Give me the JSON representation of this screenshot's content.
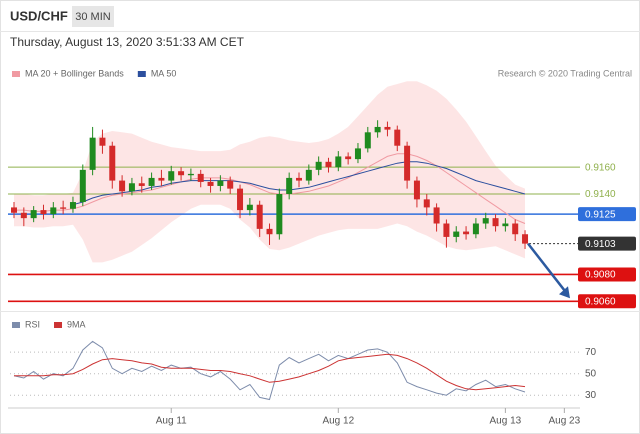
{
  "header": {
    "symbol": "USD/CHF",
    "interval": "30 MIN",
    "datetime": "Thursday, August 13, 2020 3:51:33 AM CET"
  },
  "chart_data": [
    {
      "type": "candlestick",
      "credit": "Research © 2020 Trading Central",
      "ylim": [
        0.9055,
        0.9225
      ],
      "xlim": [
        0,
        58
      ],
      "up_color": "#1f8a1f",
      "down_color": "#d42a2a",
      "open": [
        0.913,
        0.9126,
        0.9122,
        0.9128,
        0.9125,
        0.913,
        0.9129,
        0.9134,
        0.9158,
        0.9182,
        0.9176,
        0.915,
        0.9142,
        0.9148,
        0.9146,
        0.9152,
        0.915,
        0.9157,
        0.9154,
        0.9155,
        0.9149,
        0.9146,
        0.915,
        0.9144,
        0.9128,
        0.9132,
        0.9114,
        0.911,
        0.914,
        0.9152,
        0.915,
        0.9158,
        0.9164,
        0.916,
        0.9168,
        0.9166,
        0.9174,
        0.9186,
        0.919,
        0.9188,
        0.9176,
        0.915,
        0.9136,
        0.913,
        0.9118,
        0.9108,
        0.9112,
        0.911,
        0.9118,
        0.9122,
        0.9116,
        0.9118,
        0.911
      ],
      "high": [
        0.9134,
        0.913,
        0.9131,
        0.9132,
        0.9134,
        0.9135,
        0.9138,
        0.9162,
        0.919,
        0.9188,
        0.9179,
        0.9154,
        0.9152,
        0.9153,
        0.9156,
        0.9158,
        0.9161,
        0.916,
        0.9159,
        0.9158,
        0.9152,
        0.9154,
        0.9153,
        0.9147,
        0.9137,
        0.9135,
        0.9118,
        0.9144,
        0.9156,
        0.9156,
        0.9162,
        0.9168,
        0.9167,
        0.9172,
        0.9171,
        0.9178,
        0.919,
        0.9195,
        0.9194,
        0.9191,
        0.9179,
        0.9153,
        0.914,
        0.9133,
        0.9121,
        0.9116,
        0.9116,
        0.9122,
        0.9126,
        0.9125,
        0.9122,
        0.9121,
        0.9113
      ],
      "low": [
        0.9122,
        0.9116,
        0.9119,
        0.9121,
        0.9122,
        0.9125,
        0.9126,
        0.9131,
        0.9154,
        0.917,
        0.9144,
        0.9138,
        0.9139,
        0.9141,
        0.9143,
        0.9146,
        0.9147,
        0.915,
        0.915,
        0.9145,
        0.9141,
        0.9142,
        0.914,
        0.9122,
        0.9124,
        0.9108,
        0.9102,
        0.9106,
        0.9136,
        0.9145,
        0.9147,
        0.9154,
        0.9156,
        0.9157,
        0.9162,
        0.9163,
        0.9171,
        0.9182,
        0.9183,
        0.9172,
        0.9144,
        0.913,
        0.9124,
        0.9112,
        0.91,
        0.9104,
        0.9106,
        0.9107,
        0.9114,
        0.9112,
        0.9112,
        0.9105,
        0.9099
      ],
      "close": [
        0.9126,
        0.9122,
        0.9128,
        0.9125,
        0.913,
        0.9129,
        0.9134,
        0.9158,
        0.9182,
        0.9176,
        0.915,
        0.9142,
        0.9148,
        0.9146,
        0.9152,
        0.915,
        0.9157,
        0.9154,
        0.9155,
        0.9149,
        0.9146,
        0.915,
        0.9144,
        0.9128,
        0.9132,
        0.9114,
        0.911,
        0.914,
        0.9152,
        0.915,
        0.9158,
        0.9164,
        0.916,
        0.9168,
        0.9166,
        0.9174,
        0.9186,
        0.919,
        0.9188,
        0.9176,
        0.915,
        0.9136,
        0.913,
        0.9118,
        0.9108,
        0.9112,
        0.911,
        0.9118,
        0.9122,
        0.9116,
        0.9118,
        0.911,
        0.9103
      ],
      "series": [
        {
          "name": "MA 20 + Bollinger Bands",
          "color": "#f09aa2",
          "fill": "#fde0e0",
          "values": [
            0.9128,
            0.9128,
            0.9127,
            0.9127,
            0.9128,
            0.9128,
            0.9129,
            0.9131,
            0.9134,
            0.9137,
            0.9139,
            0.914,
            0.9141,
            0.9142,
            0.9143,
            0.9145,
            0.9147,
            0.9149,
            0.9151,
            0.9152,
            0.9152,
            0.9152,
            0.9151,
            0.9149,
            0.9147,
            0.9144,
            0.9141,
            0.914,
            0.914,
            0.9141,
            0.9142,
            0.9144,
            0.9146,
            0.9149,
            0.9152,
            0.9156,
            0.916,
            0.9164,
            0.9168,
            0.917,
            0.917,
            0.9168,
            0.9165,
            0.9161,
            0.9156,
            0.9151,
            0.9146,
            0.9141,
            0.9136,
            0.9131,
            0.9126,
            0.9121,
            0.9118
          ],
          "upper": [
            0.914,
            0.914,
            0.9139,
            0.9139,
            0.914,
            0.914,
            0.9141,
            0.9156,
            0.9179,
            0.9185,
            0.9187,
            0.9186,
            0.9185,
            0.9182,
            0.9179,
            0.9177,
            0.9175,
            0.9174,
            0.9173,
            0.9172,
            0.9172,
            0.9172,
            0.9173,
            0.9177,
            0.9179,
            0.9182,
            0.9183,
            0.9182,
            0.918,
            0.9179,
            0.9178,
            0.9179,
            0.9181,
            0.9185,
            0.919,
            0.9198,
            0.9206,
            0.9214,
            0.922,
            0.9222,
            0.9224,
            0.9224,
            0.9221,
            0.9217,
            0.9211,
            0.9203,
            0.9194,
            0.9183,
            0.9172,
            0.9161,
            0.9154,
            0.9147,
            0.9144
          ],
          "lower": [
            0.9116,
            0.9116,
            0.9115,
            0.9115,
            0.9116,
            0.9116,
            0.9117,
            0.9106,
            0.9089,
            0.9089,
            0.9091,
            0.9094,
            0.9097,
            0.9102,
            0.9107,
            0.9113,
            0.9119,
            0.9124,
            0.9129,
            0.9132,
            0.9132,
            0.9132,
            0.9129,
            0.9121,
            0.9115,
            0.9106,
            0.9099,
            0.9098,
            0.91,
            0.9103,
            0.9106,
            0.9109,
            0.9111,
            0.9113,
            0.9114,
            0.9114,
            0.9114,
            0.9114,
            0.9116,
            0.9118,
            0.9116,
            0.9112,
            0.9109,
            0.9105,
            0.9101,
            0.9099,
            0.9098,
            0.9099,
            0.91,
            0.9101,
            0.9098,
            0.9095,
            0.9092
          ]
        },
        {
          "name": "MA 50",
          "color": "#2c4f9e",
          "values": [
            null,
            null,
            null,
            null,
            null,
            null,
            0.9132,
            0.9134,
            0.9137,
            0.9139,
            0.914,
            0.9141,
            0.9142,
            0.9143,
            0.9145,
            0.9146,
            0.9148,
            0.9149,
            0.915,
            0.915,
            0.915,
            0.915,
            0.915,
            0.9149,
            0.9148,
            0.9146,
            0.9144,
            0.9143,
            0.9143,
            0.9144,
            0.9145,
            0.9147,
            0.9149,
            0.9151,
            0.9153,
            0.9155,
            0.9157,
            0.9159,
            0.9161,
            0.9163,
            0.9164,
            0.9164,
            0.9163,
            0.9161,
            0.9159,
            0.9156,
            0.9153,
            0.915,
            0.9148,
            0.9146,
            0.9144,
            0.9142,
            0.914
          ]
        }
      ],
      "levels": [
        {
          "value": 0.916,
          "label": "0.9160",
          "color": "#8fb04c",
          "style": "text"
        },
        {
          "value": 0.914,
          "label": "0.9140",
          "color": "#8fb04c",
          "style": "text"
        },
        {
          "value": 0.9125,
          "label": "0.9125",
          "color": "#2f6fdc",
          "style": "box"
        },
        {
          "value": 0.9103,
          "label": "0.9103",
          "color": "#333333",
          "style": "box",
          "dashed": true
        },
        {
          "value": 0.908,
          "label": "0.9080",
          "color": "#dd1111",
          "style": "box"
        },
        {
          "value": 0.906,
          "label": "0.9060",
          "color": "#dd1111",
          "style": "box"
        }
      ]
    },
    {
      "type": "line",
      "ylim": [
        20,
        85
      ],
      "yticks": [
        70,
        50,
        30
      ],
      "grid": true,
      "xlim": [
        0,
        58
      ],
      "xticks": [
        {
          "value": 16,
          "label": "Aug 11"
        },
        {
          "value": 33,
          "label": "Aug 12"
        },
        {
          "value": 50,
          "label": "Aug 13"
        },
        {
          "value": 56,
          "label": "Aug 23"
        }
      ],
      "series": [
        {
          "name": "RSI",
          "color": "#7d8cab",
          "values": [
            48,
            46,
            52,
            45,
            50,
            48,
            55,
            72,
            80,
            74,
            55,
            50,
            55,
            52,
            57,
            53,
            58,
            55,
            56,
            50,
            47,
            52,
            45,
            35,
            40,
            28,
            26,
            58,
            65,
            60,
            64,
            68,
            62,
            67,
            64,
            68,
            72,
            73,
            70,
            60,
            42,
            38,
            35,
            32,
            30,
            36,
            34,
            40,
            44,
            38,
            40,
            36,
            33
          ]
        },
        {
          "name": "9MA",
          "color": "#cc3333",
          "values": [
            48,
            48,
            48,
            48,
            49,
            49,
            50,
            54,
            59,
            63,
            64,
            63,
            62,
            60,
            59,
            56,
            55,
            55,
            55,
            54,
            53,
            53,
            52,
            50,
            48,
            45,
            42,
            43,
            45,
            47,
            50,
            53,
            57,
            62,
            64,
            65,
            66,
            67,
            68,
            67,
            64,
            60,
            55,
            49,
            43,
            39,
            36,
            35,
            36,
            37,
            38,
            39,
            38
          ]
        }
      ]
    }
  ]
}
